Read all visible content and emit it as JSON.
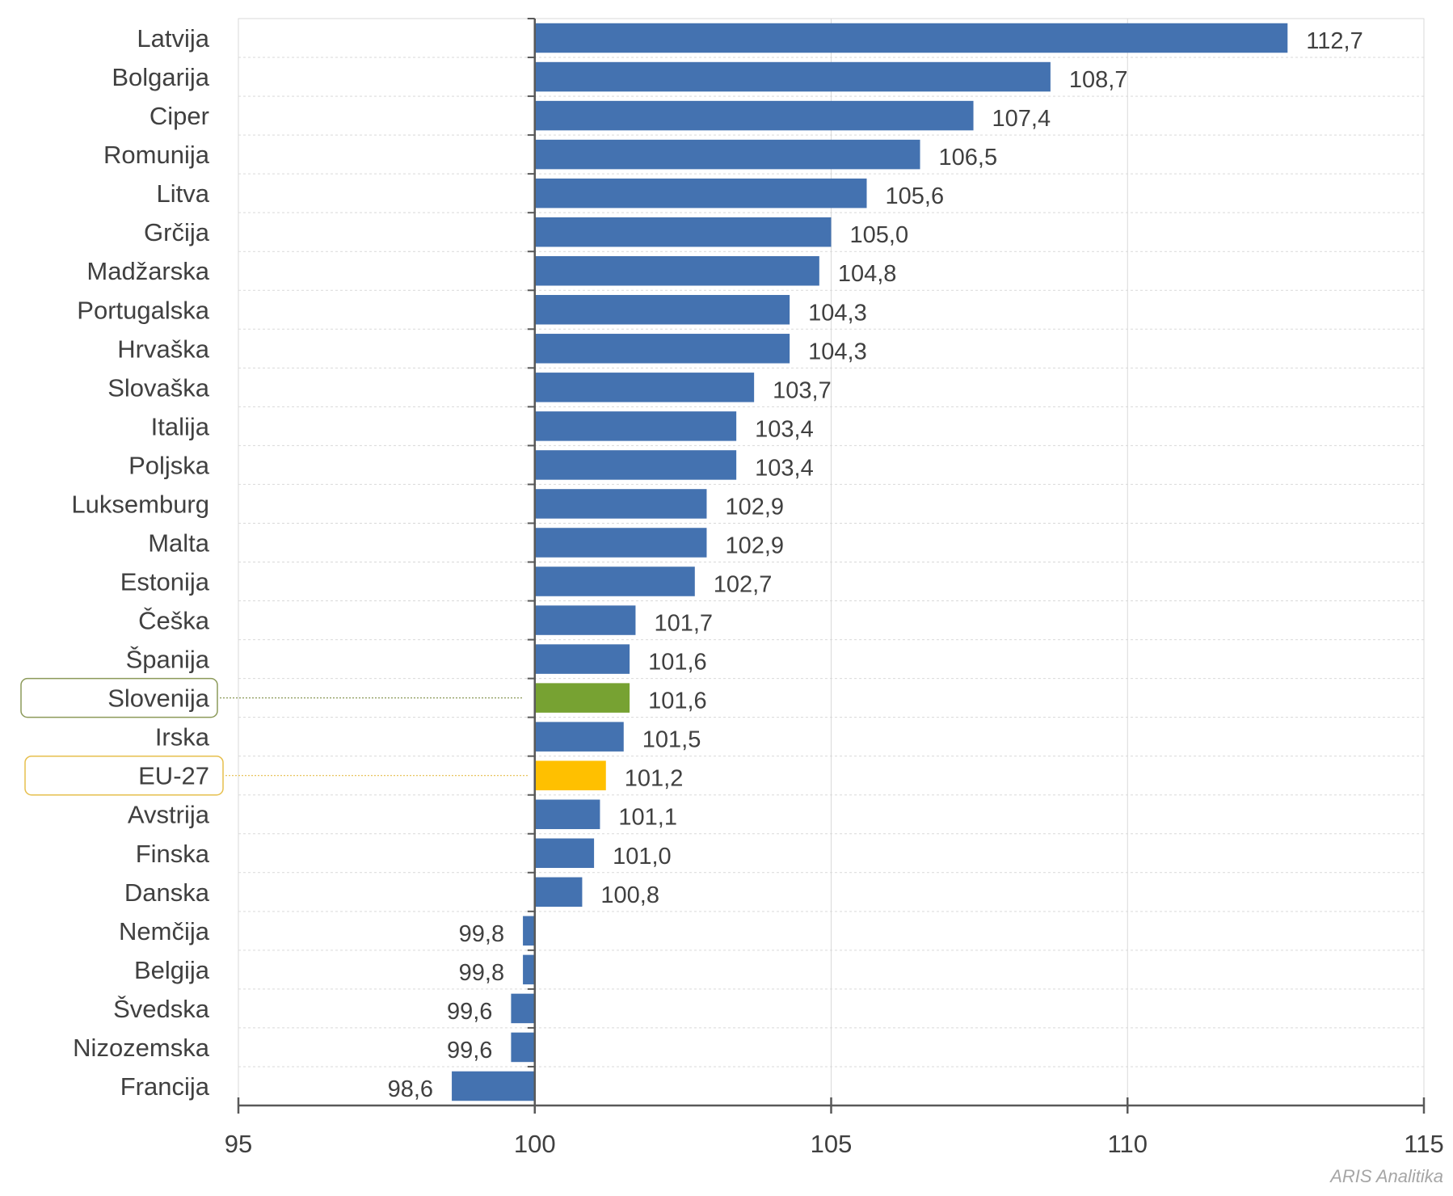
{
  "chart_data": {
    "type": "bar",
    "orientation": "horizontal",
    "baseline": 100,
    "xlim": [
      95,
      115
    ],
    "xticks": [
      95,
      100,
      105,
      110,
      115
    ],
    "grid": true,
    "title": "",
    "xlabel": "",
    "ylabel": "",
    "categories": [
      "Latvija",
      "Bolgarija",
      "Ciper",
      "Romunija",
      "Litva",
      "Grčija",
      "Madžarska",
      "Portugalska",
      "Hrvaška",
      "Slovaška",
      "Italija",
      "Poljska",
      "Luksemburg",
      "Malta",
      "Estonija",
      "Češka",
      "Španija",
      "Slovenija",
      "Irska",
      "EU-27",
      "Avstrija",
      "Finska",
      "Danska",
      "Nemčija",
      "Belgija",
      "Švedska",
      "Nizozemska",
      "Francija"
    ],
    "values": [
      112.7,
      108.7,
      107.4,
      106.5,
      105.6,
      105.0,
      104.8,
      104.3,
      104.3,
      103.7,
      103.4,
      103.4,
      102.9,
      102.9,
      102.7,
      101.7,
      101.6,
      101.6,
      101.5,
      101.2,
      101.1,
      101.0,
      100.8,
      99.8,
      99.8,
      99.6,
      99.6,
      98.6
    ],
    "value_labels": [
      "112,7",
      "108,7",
      "107,4",
      "106,5",
      "105,6",
      "105,0",
      "104,8",
      "104,3",
      "104,3",
      "103,7",
      "103,4",
      "103,4",
      "102,9",
      "102,9",
      "102,7",
      "101,7",
      "101,6",
      "101,6",
      "101,5",
      "101,2",
      "101,1",
      "101,0",
      "100,8",
      "99,8",
      "99,8",
      "99,6",
      "99,6",
      "98,6"
    ],
    "highlighted": {
      "Slovenija": "#77A232",
      "EU-27": "#FFC000"
    }
  },
  "colors": {
    "bar": "#4472B0",
    "slovenia": "#77A232",
    "eu": "#FFC000",
    "label_text": "#404040",
    "axis": "#595959",
    "grid": "#d9d9d9",
    "slovenia_box": "#8C9A5A",
    "eu_box": "#E6BF4D"
  },
  "watermark": "ARIS Analitika"
}
